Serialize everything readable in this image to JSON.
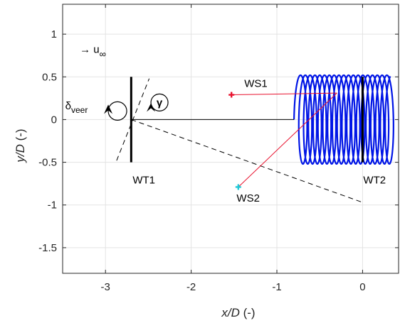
{
  "chart_data": {
    "type": "scatter",
    "title": "",
    "xlabel_var": "x/D",
    "xlabel_unit": " (-)",
    "ylabel_var": "y/D",
    "ylabel_unit": " (-)",
    "xlim": [
      -3.5,
      0.42
    ],
    "ylim": [
      -1.8,
      1.35
    ],
    "grid": true,
    "xticks": [
      {
        "value": -3,
        "label": "-3"
      },
      {
        "value": -2,
        "label": "-2"
      },
      {
        "value": -1,
        "label": "-1"
      },
      {
        "value": 0,
        "label": "0"
      }
    ],
    "yticks": [
      {
        "value": 1,
        "label": "1"
      },
      {
        "value": 0.5,
        "label": "0.5"
      },
      {
        "value": 0,
        "label": "0"
      },
      {
        "value": -0.5,
        "label": "-0.5"
      },
      {
        "value": -1,
        "label": "-1"
      },
      {
        "value": -1.5,
        "label": "-1.5"
      }
    ],
    "turbines": [
      {
        "label": "WT1",
        "x": -2.7,
        "y_from": -0.5,
        "y_to": 0.5
      },
      {
        "label": "WT2",
        "x": 0.0,
        "y_from": -0.5,
        "y_to": 0.5
      }
    ],
    "wind_direction": {
      "label": "→ u",
      "subscript": "∞"
    },
    "veer": {
      "label": "δ",
      "subscript": "veer"
    },
    "yaw": {
      "label": "γ"
    },
    "centerline": {
      "x": [
        -2.7,
        -0.8
      ],
      "y": [
        0.0,
        0.0
      ]
    },
    "yaw_line": {
      "x": [
        -2.87,
        -2.49
      ],
      "y": [
        -0.48,
        0.48
      ]
    },
    "wake_line": {
      "x": [
        -2.7,
        0.0
      ],
      "y": [
        0.0,
        -0.97
      ]
    },
    "stations": [
      {
        "label": "WS1",
        "x": -1.53,
        "y": 0.29,
        "color": "#e8112d",
        "marker": "plus",
        "end_x": -0.3,
        "end_y": 0.31
      },
      {
        "label": "WS2",
        "x": -1.45,
        "y": -0.79,
        "color": "#1fc8d6",
        "marker": "plus",
        "end_x": -0.3,
        "end_y": 0.31
      }
    ],
    "helix": {
      "color": "#0015e6",
      "x_start": -0.8,
      "x_end": 0.4,
      "amplitude": 0.53,
      "loop_spacing": 0.056,
      "loop_half_width": 0.062
    }
  }
}
